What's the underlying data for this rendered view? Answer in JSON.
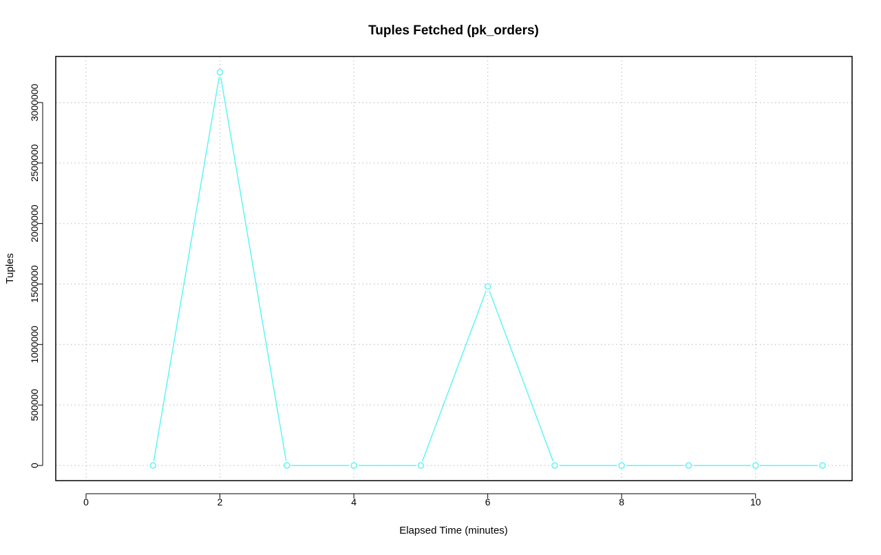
{
  "chart_data": {
    "type": "line",
    "title": "Tuples Fetched (pk_orders)",
    "xlabel": "Elapsed Time (minutes)",
    "ylabel": "Tuples",
    "x": [
      1,
      2,
      3,
      4,
      5,
      6,
      7,
      8,
      9,
      10,
      11
    ],
    "series": [
      {
        "values": [
          0,
          3250000,
          0,
          0,
          0,
          1480000,
          0,
          0,
          0,
          0,
          0
        ],
        "color": "#5ff5f5"
      }
    ],
    "xlim": [
      0,
      11
    ],
    "ylim": [
      0,
      3250000
    ],
    "xticks": [
      0,
      2,
      4,
      6,
      8,
      10
    ],
    "xtick_labels": [
      "0",
      "2",
      "4",
      "6",
      "8",
      "10"
    ],
    "yticks": [
      0,
      500000,
      1000000,
      1500000,
      2000000,
      2500000,
      3000000
    ],
    "ytick_labels": [
      "0",
      "500000",
      "1000000",
      "1500000",
      "2000000",
      "2500000",
      "3000000"
    ],
    "grid": true,
    "markers": "open-circle"
  }
}
